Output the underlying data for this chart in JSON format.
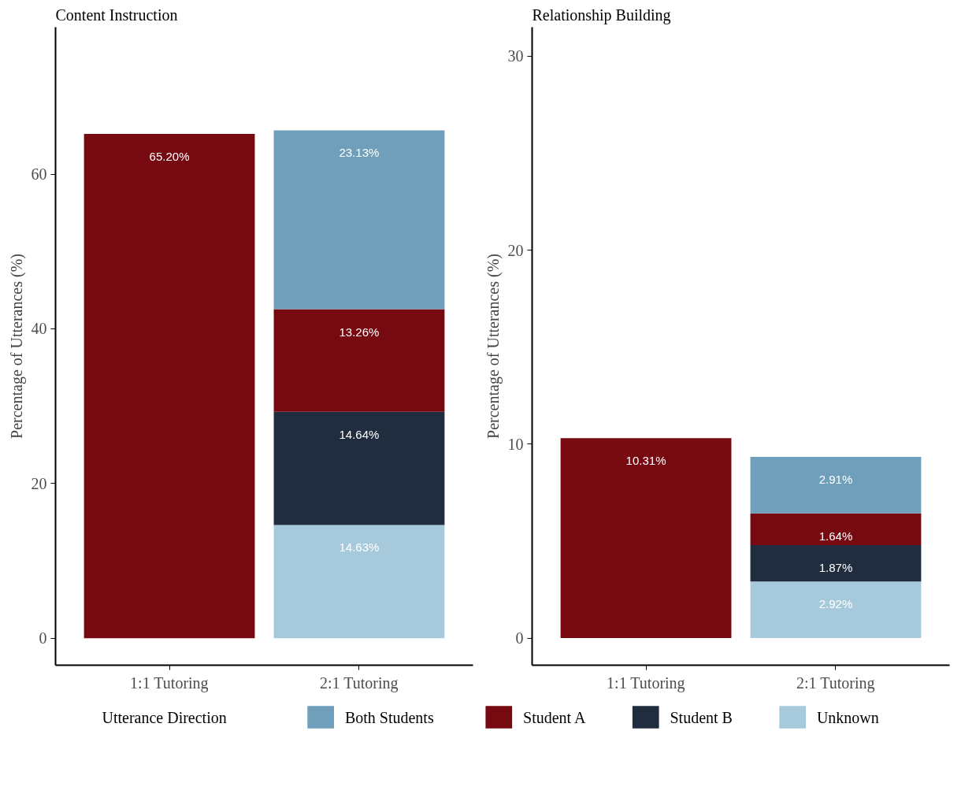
{
  "chart_data": [
    {
      "type": "bar",
      "title": "Content Instruction",
      "ylabel": "Percentage of Utterances (%)",
      "stacked": true,
      "categories": [
        "1:1 Tutoring",
        "2:1 Tutoring"
      ],
      "ylim": [
        -3.5,
        79
      ],
      "yticks": [
        0,
        20,
        40,
        60
      ],
      "grid": false,
      "legend": "bottom",
      "legend_title": "Utterance Direction",
      "series": [
        {
          "name": "Unknown",
          "color": "#a6c9db",
          "values": [
            null,
            14.63
          ],
          "value_labels": [
            null,
            "14.63%"
          ]
        },
        {
          "name": "Student B",
          "color": "#1f2d3f",
          "values": [
            null,
            14.64
          ],
          "value_labels": [
            null,
            "14.64%"
          ]
        },
        {
          "name": "Student A",
          "color": "#760a10",
          "values": [
            65.2,
            13.26
          ],
          "value_labels": [
            "65.20%",
            "13.26%"
          ]
        },
        {
          "name": "Both Students",
          "color": "#6f9fba",
          "values": [
            null,
            23.13
          ],
          "value_labels": [
            null,
            "23.13%"
          ]
        }
      ]
    },
    {
      "type": "bar",
      "title": "Relationship Building",
      "ylabel": "Percentage of Utterances (%)",
      "stacked": true,
      "categories": [
        "1:1 Tutoring",
        "2:1 Tutoring"
      ],
      "ylim": [
        -1.4,
        31.5
      ],
      "yticks": [
        0,
        10,
        20,
        30
      ],
      "grid": false,
      "series": [
        {
          "name": "Unknown",
          "color": "#a6c9db",
          "values": [
            null,
            2.92
          ],
          "value_labels": [
            null,
            "2.92%"
          ]
        },
        {
          "name": "Student B",
          "color": "#1f2d3f",
          "values": [
            null,
            1.87
          ],
          "value_labels": [
            null,
            "1.87%"
          ]
        },
        {
          "name": "Student A",
          "color": "#760a10",
          "values": [
            10.31,
            1.64
          ],
          "value_labels": [
            "10.31%",
            "1.64%"
          ]
        },
        {
          "name": "Both Students",
          "color": "#6f9fba",
          "values": [
            null,
            2.91
          ],
          "value_labels": [
            null,
            "2.91%"
          ]
        }
      ]
    }
  ]
}
